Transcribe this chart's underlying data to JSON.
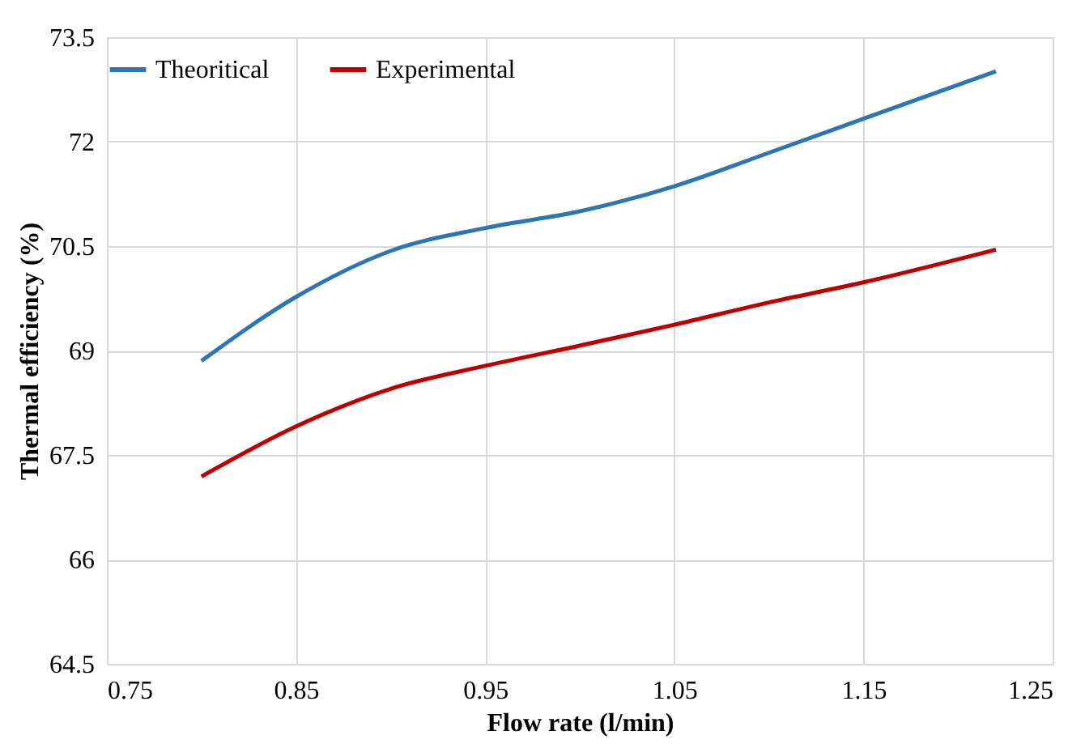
{
  "chart_data": {
    "type": "line",
    "xlabel": "Flow rate (l/min)",
    "ylabel": "Thermal efficiency (%)",
    "x": [
      0.8,
      0.85,
      0.9,
      0.95,
      1.0,
      1.05,
      1.1,
      1.15,
      1.22
    ],
    "series": [
      {
        "name": "Theoritical",
        "color": "#2e75b6",
        "values": [
          68.85,
          69.77,
          70.43,
          70.76,
          71.0,
          71.36,
          71.84,
          72.33,
          73.01
        ]
      },
      {
        "name": "Experimental",
        "color": "#c00000",
        "values": [
          67.19,
          67.91,
          68.45,
          68.78,
          69.07,
          69.37,
          69.69,
          69.98,
          70.45
        ]
      }
    ],
    "xlim": [
      0.75,
      1.25
    ],
    "xticks": [
      0.75,
      0.85,
      0.95,
      1.05,
      1.15,
      1.25
    ],
    "ylim": [
      64.5,
      73.5
    ],
    "yticks": [
      64.5,
      66,
      67.5,
      69,
      70.5,
      72,
      73.5
    ],
    "grid": true,
    "legend": "top",
    "marker": "none",
    "line_style": "solid"
  }
}
